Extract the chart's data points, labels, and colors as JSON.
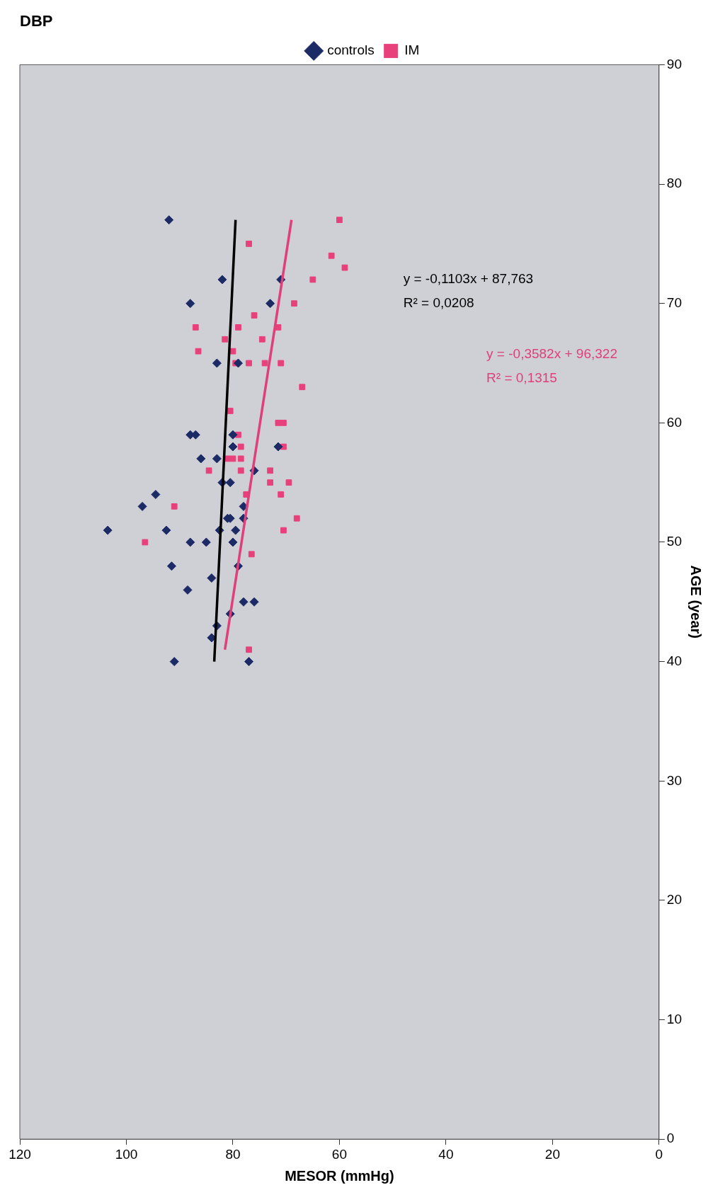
{
  "chart_data": {
    "type": "scatter",
    "title": "DBP",
    "xlabel": "MESOR (mmHg)",
    "ylabel": "AGE (year)",
    "xlim": [
      120,
      0
    ],
    "xticks": [
      0,
      20,
      40,
      60,
      80,
      100,
      120
    ],
    "ylim": [
      0,
      90
    ],
    "yticks": [
      0,
      10,
      20,
      30,
      40,
      50,
      60,
      70,
      80,
      90
    ],
    "grid": false,
    "legend": "top",
    "series": [
      {
        "name": "controls",
        "color": "#1c2a66",
        "marker": "diamond",
        "x": [
          92,
          71,
          82,
          88,
          73,
          79,
          83,
          88,
          87,
          80,
          71.5,
          86,
          83,
          80,
          76,
          82,
          80.5,
          97,
          78,
          94.5,
          81,
          80.5,
          78,
          103.5,
          92.5,
          82.5,
          79.5,
          88,
          85,
          80,
          91.5,
          79,
          88.5,
          84,
          78,
          76,
          80.5,
          84,
          83,
          91,
          77
        ],
        "values": [
          77,
          72,
          72,
          70,
          70,
          65,
          65,
          59,
          59,
          59,
          58,
          57,
          57,
          58,
          56,
          55,
          55,
          53,
          53,
          54,
          52,
          52,
          52,
          51,
          51,
          51,
          51,
          50,
          50,
          50,
          48,
          48,
          46,
          47,
          45,
          45,
          44,
          42,
          43,
          40,
          40
        ]
      },
      {
        "name": "IM",
        "color": "#e8407a",
        "marker": "square",
        "x": [
          60,
          59,
          61.5,
          65,
          77,
          68.5,
          87,
          79,
          71.5,
          86.5,
          81.5,
          74.5,
          76,
          80,
          79.5,
          77,
          74,
          71,
          67,
          80.5,
          71.5,
          70.5,
          79,
          70.5,
          78.5,
          80,
          81,
          78.5,
          73,
          84.5,
          78.5,
          73,
          69.5,
          71,
          77.5,
          91,
          68,
          96.5,
          70.5,
          76.5,
          77
        ],
        "values": [
          77,
          73,
          74,
          72,
          75,
          70,
          68,
          68,
          68,
          66,
          67,
          67,
          69,
          66,
          65,
          65,
          65,
          65,
          63,
          61,
          60,
          60,
          59,
          58,
          58,
          57,
          57,
          57,
          56,
          56,
          56,
          55,
          55,
          54,
          54,
          53,
          52,
          50,
          51,
          49,
          41
        ]
      },
      {
        "type": "line",
        "color": "#000000",
        "marker": "none",
        "x": [
          83.5,
          79.5
        ],
        "values": [
          40,
          77
        ]
      },
      {
        "type": "line",
        "color": "#e0407a",
        "marker": "none",
        "x": [
          81.5,
          69
        ],
        "values": [
          41,
          77
        ]
      }
    ],
    "annotations": [
      "y = -0,1103x + 87,763",
      "R² = 0,0208",
      "y = -0,3582x + 96,322",
      "R² = 0,1315"
    ]
  }
}
